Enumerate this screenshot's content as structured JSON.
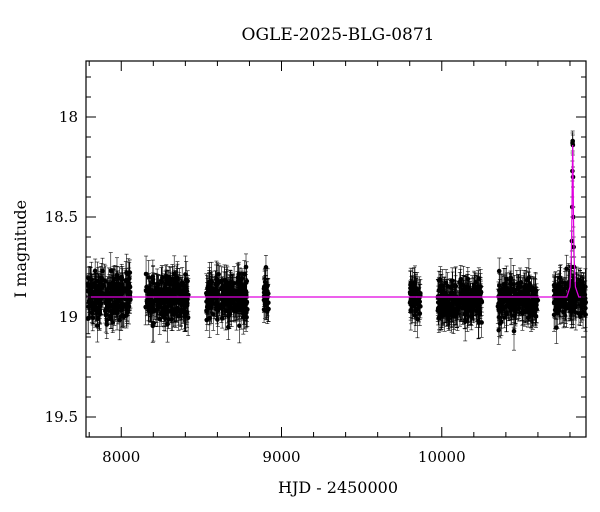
{
  "chart_data": {
    "type": "scatter",
    "title": "OGLE-2025-BLG-0871",
    "xlabel": "HJD - 2450000",
    "ylabel": "I magnitude",
    "xlim": [
      7780,
      10900
    ],
    "ylim": [
      19.6,
      17.72
    ],
    "y_inverted": true,
    "x_ticks": [
      8000,
      9000,
      10000
    ],
    "y_ticks": [
      18,
      18.5,
      19,
      19.5
    ],
    "grid": false,
    "legend": "none",
    "baseline_mag": 18.9,
    "series": [
      {
        "kind": "observations",
        "color": "#000000",
        "observing_seasons": [
          {
            "x_start": 7790,
            "x_end": 8060,
            "mag_center": 18.9,
            "scatter": 0.12,
            "error": 0.07
          },
          {
            "x_start": 8150,
            "x_end": 8420,
            "mag_center": 18.9,
            "scatter": 0.12,
            "error": 0.07
          },
          {
            "x_start": 8530,
            "x_end": 8790,
            "mag_center": 18.9,
            "scatter": 0.12,
            "error": 0.07
          },
          {
            "x_start": 8885,
            "x_end": 8920,
            "mag_center": 18.9,
            "scatter": 0.12,
            "error": 0.07
          },
          {
            "x_start": 9800,
            "x_end": 9870,
            "mag_center": 18.9,
            "scatter": 0.12,
            "error": 0.07
          },
          {
            "x_start": 9975,
            "x_end": 10250,
            "mag_center": 18.92,
            "scatter": 0.1,
            "error": 0.07
          },
          {
            "x_start": 10350,
            "x_end": 10600,
            "mag_center": 18.92,
            "scatter": 0.1,
            "error": 0.07
          },
          {
            "x_start": 10700,
            "x_end": 10900,
            "mag_center": 18.9,
            "scatter": 0.1,
            "error": 0.07
          }
        ],
        "event_points": [
          {
            "x": 10810,
            "y": 18.75
          },
          {
            "x": 10812,
            "y": 18.62
          },
          {
            "x": 10814,
            "y": 18.45
          },
          {
            "x": 10815,
            "y": 18.27
          },
          {
            "x": 10816,
            "y": 18.13
          },
          {
            "x": 10817,
            "y": 18.12
          },
          {
            "x": 10818,
            "y": 18.14
          },
          {
            "x": 10819,
            "y": 18.3
          },
          {
            "x": 10821,
            "y": 18.5
          },
          {
            "x": 10823,
            "y": 18.65
          },
          {
            "x": 10826,
            "y": 18.75
          }
        ]
      },
      {
        "kind": "model",
        "color": "#e000e0",
        "points": [
          {
            "x": 7780,
            "y": 18.9
          },
          {
            "x": 10780,
            "y": 18.9
          },
          {
            "x": 10800,
            "y": 18.85
          },
          {
            "x": 10808,
            "y": 18.7
          },
          {
            "x": 10812,
            "y": 18.5
          },
          {
            "x": 10815,
            "y": 18.25
          },
          {
            "x": 10817,
            "y": 18.14
          },
          {
            "x": 10819,
            "y": 18.25
          },
          {
            "x": 10822,
            "y": 18.5
          },
          {
            "x": 10826,
            "y": 18.7
          },
          {
            "x": 10834,
            "y": 18.85
          },
          {
            "x": 10855,
            "y": 18.9
          },
          {
            "x": 10900,
            "y": 18.9
          }
        ]
      }
    ]
  }
}
